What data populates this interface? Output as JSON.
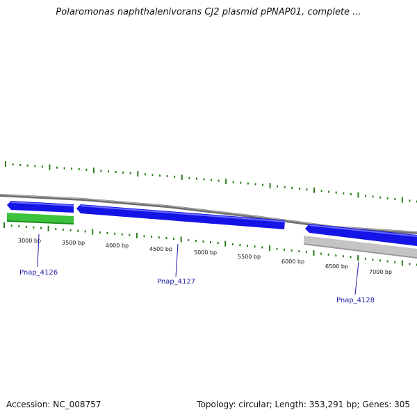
{
  "title": "Polaromonas naphthalenivorans CJ2 plasmid pPNAP01, complete ...",
  "footer": {
    "accession": "Accession: NC_008757",
    "topology": "Topology: circular; Length: 353,291 bp; Genes: 305"
  },
  "colors": {
    "backbone": "#8a8a8a",
    "tick": "#2e7d1e",
    "forward_gene": "#1414e6",
    "reverse_gene": "#3cc23c",
    "other_gene": "#c4c4c4",
    "label": "#1a1aa6"
  },
  "scale_labels": [
    "3000 bp",
    "3500 bp",
    "4000 bp",
    "4500 bp",
    "5000 bp",
    "5500 bp",
    "6000 bp",
    "6500 bp",
    "7000 bp"
  ],
  "features": [
    {
      "name": "Pnap_4126",
      "strand": "forward",
      "label": "Pnap_4126"
    },
    {
      "name": "Pnap_4127",
      "strand": "forward",
      "label": "Pnap_4127"
    },
    {
      "name": "Pnap_4128",
      "strand": "forward",
      "label": "Pnap_4128"
    },
    {
      "name": "reverse-gene-1",
      "strand": "reverse",
      "label": ""
    },
    {
      "name": "reverse-gene-2",
      "strand": "reverse",
      "label": ""
    }
  ]
}
